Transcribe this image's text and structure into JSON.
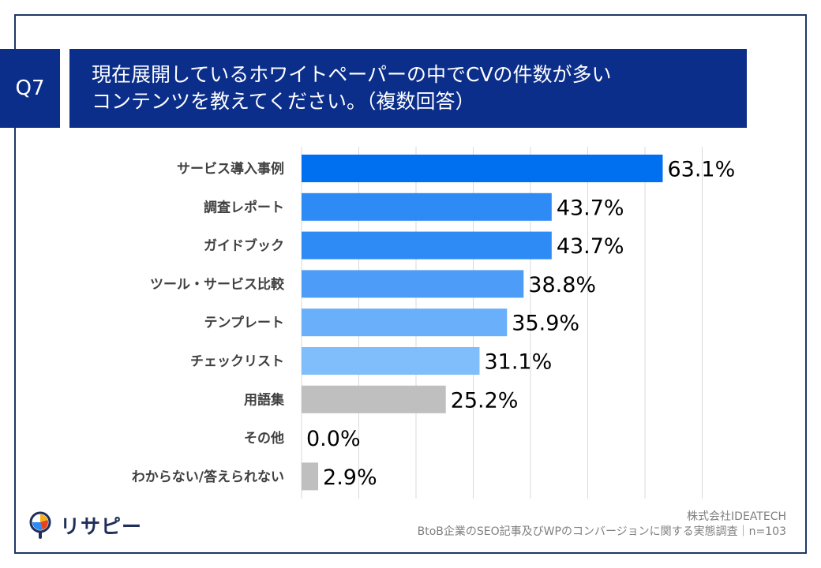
{
  "header": {
    "question_tag": "Q7",
    "title_line1": "現在展開しているホワイトペーパーの中でCVの件数が多い",
    "title_line2": "コンテンツを教えてください。（複数回答）"
  },
  "footer": {
    "company": "株式会社IDEATECH",
    "source": "BtoB企業のSEO記事及びWPのコンバージョンに関する実態調査｜n=103"
  },
  "logo": {
    "text": "リサピー",
    "icon": "magnifier-pie-icon"
  },
  "chart_data": {
    "type": "bar",
    "orientation": "horizontal",
    "unit": "%",
    "xlim": [
      0,
      70
    ],
    "grid": true,
    "categories": [
      "サービス導入事例",
      "調査レポート",
      "ガイドブック",
      "ツール・サービス比較",
      "テンプレート",
      "チェックリスト",
      "用語集",
      "その他",
      "わからない/答えられない"
    ],
    "values": [
      63.1,
      43.7,
      43.7,
      38.8,
      35.9,
      31.1,
      25.2,
      0.0,
      2.9
    ],
    "labels": [
      "63.1%",
      "43.7%",
      "43.7%",
      "38.8%",
      "35.9%",
      "31.1%",
      "25.2%",
      "0.0%",
      "2.9%"
    ],
    "colors": [
      "#0070f0",
      "#2e8bf5",
      "#2e8bf5",
      "#4d9cf7",
      "#6aaff9",
      "#80bdfb",
      "#bfbfbf",
      "#bfbfbf",
      "#bfbfbf"
    ]
  }
}
